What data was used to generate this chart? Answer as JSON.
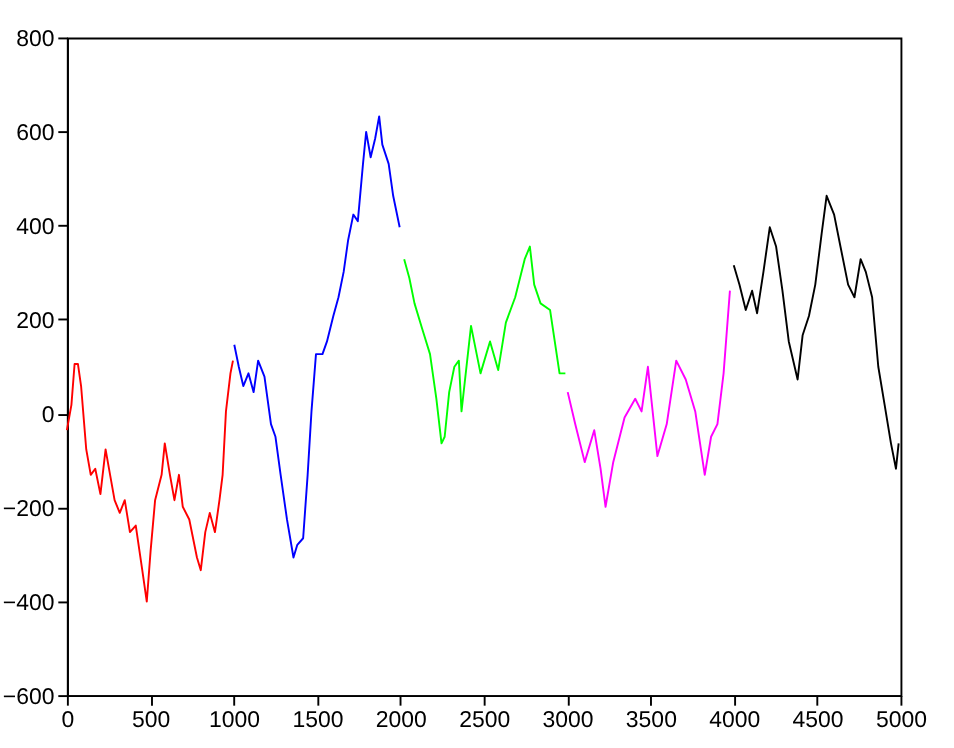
{
  "chart_data": {
    "type": "line",
    "xlim": [
      0,
      5000
    ],
    "ylim": [
      -600,
      800
    ],
    "xticks": [
      0,
      500,
      1000,
      1500,
      2000,
      2500,
      3000,
      3500,
      4000,
      4500,
      5000
    ],
    "yticks": [
      -600,
      -400,
      -200,
      0,
      200,
      400,
      600,
      800
    ],
    "grid": false,
    "legend": false,
    "marker": "none",
    "line_style": "solid",
    "series": [
      {
        "color": "#ff0000",
        "x": [
          0,
          27,
          46,
          66,
          85,
          116,
          143,
          170,
          201,
          232,
          259,
          286,
          317,
          347,
          378,
          413,
          452,
          479,
          502,
          529,
          568,
          587,
          618,
          645,
          672,
          695,
          734,
          780,
          803,
          830,
          857,
          888,
          915,
          934,
          954,
          981,
          996
        ],
        "values": [
          -36,
          18,
          105,
          105,
          58,
          -77,
          -131,
          -118,
          -172,
          -77,
          -131,
          -185,
          -212,
          -185,
          -253,
          -239,
          -334,
          -401,
          -293,
          -185,
          -131,
          -64,
          -131,
          -185,
          -131,
          -199,
          -226,
          -307,
          -334,
          -253,
          -212,
          -253,
          -185,
          -131,
          4,
          85,
          112
        ]
      },
      {
        "color": "#0000ff",
        "x": [
          1004,
          1031,
          1058,
          1089,
          1120,
          1147,
          1185,
          1224,
          1251,
          1282,
          1320,
          1359,
          1382,
          1417,
          1444,
          1467,
          1494,
          1533,
          1560,
          1598,
          1629,
          1660,
          1687,
          1718,
          1745,
          1776,
          1795,
          1822,
          1849,
          1873,
          1892,
          1930,
          1957,
          1996
        ],
        "values": [
          146,
          99,
          58,
          85,
          45,
          112,
          78,
          -23,
          -50,
          -131,
          -226,
          -307,
          -280,
          -266,
          -131,
          4,
          126,
          126,
          153,
          207,
          247,
          301,
          369,
          423,
          409,
          531,
          599,
          545,
          585,
          632,
          572,
          531,
          463,
          396
        ]
      },
      {
        "color": "#00ff00",
        "x": [
          2023,
          2054,
          2085,
          2131,
          2178,
          2216,
          2247,
          2266,
          2293,
          2324,
          2351,
          2367,
          2424,
          2481,
          2538,
          2587,
          2633,
          2689,
          2746,
          2777,
          2803,
          2841,
          2898,
          2955,
          2990
        ],
        "values": [
          328,
          288,
          234,
          180,
          126,
          31,
          -64,
          -50,
          45,
          99,
          112,
          4,
          186,
          85,
          153,
          92,
          193,
          247,
          328,
          355,
          274,
          234,
          220,
          85,
          85
        ]
      },
      {
        "color": "#ff00ff",
        "x": [
          3004,
          3049,
          3106,
          3163,
          3201,
          3231,
          3277,
          3345,
          3409,
          3447,
          3485,
          3542,
          3598,
          3655,
          3712,
          3769,
          3826,
          3864,
          3902,
          3939,
          3977
        ],
        "values": [
          45,
          -23,
          -104,
          -36,
          -118,
          -199,
          -104,
          -9,
          31,
          4,
          99,
          -91,
          -23,
          112,
          72,
          4,
          -131,
          -50,
          -23,
          85,
          261
        ]
      },
      {
        "color": "#000000",
        "x": [
          4000,
          4034,
          4072,
          4110,
          4140,
          4178,
          4216,
          4254,
          4292,
          4330,
          4383,
          4413,
          4451,
          4489,
          4527,
          4557,
          4602,
          4640,
          4686,
          4724,
          4761,
          4792,
          4830,
          4867,
          4905,
          4943,
          4973,
          4989
        ],
        "values": [
          315,
          274,
          220,
          261,
          213,
          301,
          396,
          355,
          261,
          153,
          72,
          166,
          207,
          274,
          382,
          463,
          423,
          355,
          274,
          247,
          328,
          301,
          247,
          99,
          18,
          -64,
          -118,
          -64
        ]
      }
    ]
  }
}
